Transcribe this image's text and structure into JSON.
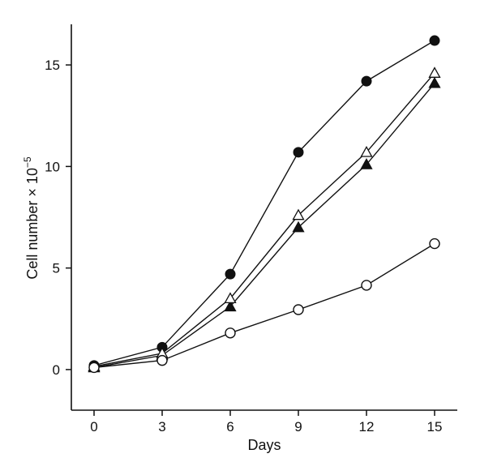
{
  "chart_data": {
    "type": "line",
    "xlabel": "Days",
    "ylabel": "Cell number × 10",
    "ylabel_exponent": "−5",
    "xlim": [
      -1,
      16
    ],
    "ylim": [
      -2,
      17
    ],
    "x_ticks": [
      0,
      3,
      6,
      9,
      12,
      15
    ],
    "y_ticks": [
      0,
      5,
      10,
      15
    ],
    "grid": false,
    "x": [
      0,
      3,
      6,
      9,
      12,
      15
    ],
    "series": [
      {
        "marker": "filled-circle",
        "values": [
          0.2,
          1.1,
          4.7,
          10.7,
          14.2,
          16.2
        ]
      },
      {
        "marker": "open-triangle",
        "values": [
          0.15,
          0.8,
          3.5,
          7.6,
          10.7,
          14.6
        ]
      },
      {
        "marker": "filled-triangle",
        "values": [
          0.1,
          0.7,
          3.1,
          7.0,
          10.1,
          14.1
        ]
      },
      {
        "marker": "open-circle",
        "values": [
          0.1,
          0.45,
          1.8,
          2.95,
          4.15,
          6.2
        ]
      }
    ],
    "colors": {
      "ink": "#111111",
      "background": "#ffffff"
    }
  }
}
